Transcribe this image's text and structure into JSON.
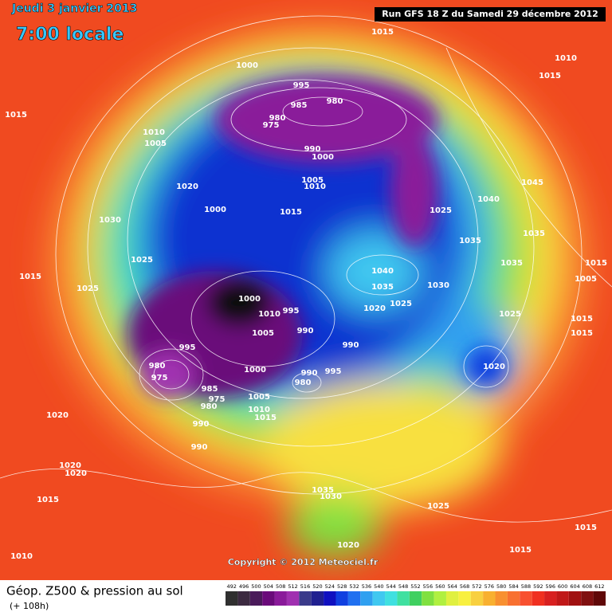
{
  "header": {
    "date": "Jeudi 3 janvier 2013",
    "time": "7:00 locale",
    "run": "Run GFS 18 Z du Samedi 29 décembre 2012"
  },
  "map": {
    "isobar_labels": [
      1015,
      1010,
      1015,
      1000,
      995,
      985,
      980,
      980,
      975,
      1015,
      1010,
      1005,
      990,
      1000,
      1020,
      1005,
      1010,
      1040,
      1045,
      1030,
      1000,
      1015,
      1025,
      1035,
      1035,
      1025,
      1035,
      1015,
      1040,
      1015,
      1005,
      1025,
      1035,
      1030,
      1000,
      1010,
      995,
      1020,
      1025,
      1025,
      1015,
      1005,
      990,
      1015,
      990,
      995,
      980,
      1020,
      1000,
      990,
      995,
      975,
      980,
      985,
      975,
      980,
      1005,
      1010,
      1015,
      1020,
      990,
      990,
      1020,
      1020,
      1035,
      1030,
      1025,
      1015,
      1015,
      1020,
      1015,
      1010
    ],
    "copyright": "Copyright © 2012 Meteociel.fr"
  },
  "footer": {
    "title": "Géop. Z500 & pression au sol",
    "lead": "(+ 108h)",
    "colorbar": {
      "values": [
        492,
        496,
        500,
        504,
        508,
        512,
        516,
        520,
        524,
        528,
        532,
        536,
        540,
        544,
        548,
        552,
        556,
        560,
        564,
        568,
        572,
        576,
        580,
        584,
        588,
        592,
        596,
        600,
        604,
        608,
        612
      ],
      "colors": [
        "#303030",
        "#3c2a40",
        "#4a1a5a",
        "#6a0a7a",
        "#8a1a9a",
        "#a030b0",
        "#3a3a8a",
        "#202090",
        "#1010c0",
        "#1040e0",
        "#2070f0",
        "#30a0f0",
        "#40c8f0",
        "#40e0e0",
        "#40e0a0",
        "#40d060",
        "#80e040",
        "#b0f040",
        "#e0f040",
        "#f8f040",
        "#f8d040",
        "#f8b030",
        "#f89030",
        "#f87030",
        "#f85030",
        "#f03020",
        "#d82020",
        "#c01818",
        "#a01010",
        "#801010",
        "#600808"
      ]
    }
  }
}
